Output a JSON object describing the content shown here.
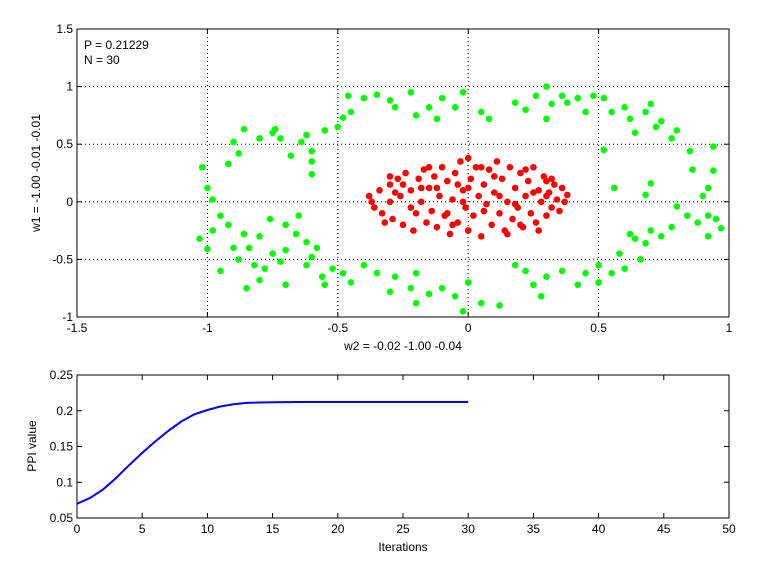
{
  "chart_data": [
    {
      "type": "scatter",
      "title": "",
      "xlabel": "w2 = -0.02  -1.00  -0.04",
      "ylabel": "w1 = -1.00  -0.01  -0.01",
      "xlim": [
        -1.5,
        1
      ],
      "ylim": [
        -1,
        1.5
      ],
      "xticks": [
        "-1.5",
        "-1",
        "-0.5",
        "0",
        "0.5",
        "1"
      ],
      "yticks": [
        "-1",
        "-0.5",
        "0",
        "0.5",
        "1",
        "1.5"
      ],
      "grid": true,
      "annotations": [
        "P = 0.21229",
        "N = 30"
      ],
      "colors": {
        "outer": "#00ff00",
        "inner": "#ff0000"
      },
      "series": [
        {
          "color": "#00ff00",
          "points": [
            [
              -1.02,
              0.3
            ],
            [
              -1.0,
              0.12
            ],
            [
              -0.98,
              0.02
            ],
            [
              -1.03,
              -0.32
            ],
            [
              -1.0,
              -0.41
            ],
            [
              -0.98,
              -0.25
            ],
            [
              -0.95,
              -0.12
            ],
            [
              -0.92,
              0.33
            ],
            [
              -0.9,
              0.52
            ],
            [
              -0.88,
              0.42
            ],
            [
              -0.86,
              0.63
            ],
            [
              -0.8,
              0.55
            ],
            [
              -0.75,
              0.6
            ],
            [
              -0.72,
              0.55
            ],
            [
              -0.74,
              0.63
            ],
            [
              -0.68,
              0.4
            ],
            [
              -0.64,
              0.52
            ],
            [
              -0.6,
              0.44
            ],
            [
              -0.62,
              0.58
            ],
            [
              -0.6,
              0.35
            ],
            [
              -0.6,
              0.24
            ],
            [
              -0.55,
              0.62
            ],
            [
              -0.5,
              0.65
            ],
            [
              -0.48,
              0.73
            ],
            [
              -0.45,
              0.78
            ],
            [
              -0.46,
              0.92
            ],
            [
              -0.4,
              0.9
            ],
            [
              -0.35,
              0.93
            ],
            [
              -0.3,
              0.88
            ],
            [
              -0.28,
              0.82
            ],
            [
              -0.22,
              0.95
            ],
            [
              -0.2,
              0.75
            ],
            [
              -0.15,
              0.82
            ],
            [
              -0.12,
              0.72
            ],
            [
              -0.1,
              0.9
            ],
            [
              -0.05,
              0.82
            ],
            [
              -0.02,
              0.95
            ],
            [
              0.05,
              0.78
            ],
            [
              0.08,
              0.72
            ],
            [
              0.18,
              0.86
            ],
            [
              0.22,
              0.8
            ],
            [
              0.26,
              0.92
            ],
            [
              0.3,
              1.0
            ],
            [
              0.32,
              0.85
            ],
            [
              0.3,
              0.72
            ],
            [
              0.36,
              0.92
            ],
            [
              0.38,
              0.86
            ],
            [
              0.42,
              0.9
            ],
            [
              0.45,
              0.78
            ],
            [
              0.48,
              0.92
            ],
            [
              0.52,
              0.9
            ],
            [
              0.55,
              0.78
            ],
            [
              0.6,
              0.82
            ],
            [
              0.62,
              0.72
            ],
            [
              0.64,
              0.6
            ],
            [
              0.68,
              0.78
            ],
            [
              0.7,
              0.85
            ],
            [
              0.72,
              0.65
            ],
            [
              0.74,
              0.7
            ],
            [
              0.78,
              0.55
            ],
            [
              0.8,
              0.62
            ],
            [
              0.85,
              0.44
            ],
            [
              0.86,
              0.28
            ],
            [
              0.92,
              0.12
            ],
            [
              0.94,
              0.27
            ],
            [
              0.94,
              0.48
            ],
            [
              0.9,
              0.05
            ],
            [
              0.92,
              -0.12
            ],
            [
              0.95,
              -0.15
            ],
            [
              0.97,
              -0.23
            ],
            [
              0.92,
              -0.3
            ],
            [
              0.88,
              -0.18
            ],
            [
              0.84,
              -0.12
            ],
            [
              0.8,
              -0.04
            ],
            [
              0.78,
              -0.22
            ],
            [
              0.74,
              -0.3
            ],
            [
              0.7,
              -0.25
            ],
            [
              0.68,
              -0.36
            ],
            [
              0.64,
              -0.32
            ],
            [
              0.66,
              -0.5
            ],
            [
              0.6,
              -0.58
            ],
            [
              0.58,
              -0.45
            ],
            [
              0.62,
              -0.28
            ],
            [
              0.68,
              0.06
            ],
            [
              0.7,
              0.16
            ],
            [
              0.56,
              0.12
            ],
            [
              0.52,
              0.45
            ],
            [
              0.55,
              -0.62
            ],
            [
              0.5,
              -0.55
            ],
            [
              0.5,
              -0.7
            ],
            [
              0.45,
              -0.62
            ],
            [
              0.42,
              -0.72
            ],
            [
              0.36,
              -0.6
            ],
            [
              0.3,
              -0.65
            ],
            [
              0.28,
              -0.82
            ],
            [
              0.25,
              -0.72
            ],
            [
              0.22,
              -0.6
            ],
            [
              0.18,
              -0.55
            ],
            [
              0.12,
              -0.9
            ],
            [
              0.05,
              -0.88
            ],
            [
              -0.02,
              -0.95
            ],
            [
              -0.05,
              -0.82
            ],
            [
              -0.1,
              -0.75
            ],
            [
              -0.15,
              -0.8
            ],
            [
              -0.2,
              -0.88
            ],
            [
              -0.22,
              -0.75
            ],
            [
              -0.28,
              -0.65
            ],
            [
              -0.3,
              -0.78
            ],
            [
              -0.35,
              -0.62
            ],
            [
              -0.4,
              -0.55
            ],
            [
              -0.45,
              -0.7
            ],
            [
              -0.48,
              -0.62
            ],
            [
              -0.52,
              -0.58
            ],
            [
              -0.55,
              -0.72
            ],
            [
              -0.6,
              -0.48
            ],
            [
              -0.62,
              -0.35
            ],
            [
              -0.66,
              -0.28
            ],
            [
              -0.7,
              -0.42
            ],
            [
              -0.72,
              -0.52
            ],
            [
              -0.75,
              -0.45
            ],
            [
              -0.78,
              -0.58
            ],
            [
              -0.8,
              -0.68
            ],
            [
              -0.82,
              -0.55
            ],
            [
              -0.84,
              -0.4
            ],
            [
              -0.86,
              -0.28
            ],
            [
              -0.88,
              -0.5
            ],
            [
              -0.9,
              -0.4
            ],
            [
              -0.92,
              -0.2
            ],
            [
              -0.8,
              -0.3
            ],
            [
              -0.76,
              -0.15
            ],
            [
              -0.7,
              -0.2
            ],
            [
              -0.65,
              -0.12
            ],
            [
              -0.62,
              -0.55
            ],
            [
              -0.58,
              -0.4
            ],
            [
              -0.56,
              -0.65
            ],
            [
              -0.7,
              -0.72
            ],
            [
              -0.85,
              -0.75
            ],
            [
              -0.95,
              -0.6
            ],
            [
              -0.2,
              -0.62
            ],
            [
              0.0,
              -0.7
            ]
          ]
        },
        {
          "color": "#ff0000",
          "points": [
            [
              -0.38,
              0.05
            ],
            [
              -0.36,
              -0.05
            ],
            [
              -0.34,
              0.1
            ],
            [
              -0.33,
              -0.1
            ],
            [
              -0.3,
              0.15
            ],
            [
              -0.3,
              0.0
            ],
            [
              -0.29,
              -0.15
            ],
            [
              -0.27,
              0.2
            ],
            [
              -0.26,
              0.05
            ],
            [
              -0.25,
              -0.2
            ],
            [
              -0.24,
              0.25
            ],
            [
              -0.22,
              0.1
            ],
            [
              -0.22,
              -0.05
            ],
            [
              -0.21,
              -0.25
            ],
            [
              -0.19,
              0.2
            ],
            [
              -0.18,
              0.0
            ],
            [
              -0.17,
              0.28
            ],
            [
              -0.16,
              -0.18
            ],
            [
              -0.15,
              0.12
            ],
            [
              -0.14,
              -0.08
            ],
            [
              -0.13,
              0.22
            ],
            [
              -0.12,
              -0.22
            ],
            [
              -0.11,
              0.05
            ],
            [
              -0.1,
              0.3
            ],
            [
              -0.09,
              -0.12
            ],
            [
              -0.08,
              0.18
            ],
            [
              -0.07,
              -0.28
            ],
            [
              -0.06,
              0.02
            ],
            [
              -0.05,
              0.25
            ],
            [
              -0.04,
              -0.18
            ],
            [
              -0.03,
              0.35
            ],
            [
              -0.02,
              0.1
            ],
            [
              -0.01,
              -0.05
            ],
            [
              0.0,
              0.38
            ],
            [
              0.0,
              -0.25
            ],
            [
              0.01,
              0.2
            ],
            [
              0.02,
              -0.12
            ],
            [
              0.03,
              0.3
            ],
            [
              0.04,
              0.05
            ],
            [
              0.05,
              -0.3
            ],
            [
              0.06,
              0.15
            ],
            [
              0.07,
              -0.02
            ],
            [
              0.08,
              0.28
            ],
            [
              0.09,
              -0.2
            ],
            [
              0.1,
              0.08
            ],
            [
              0.11,
              0.35
            ],
            [
              0.12,
              -0.1
            ],
            [
              0.13,
              0.2
            ],
            [
              0.14,
              -0.25
            ],
            [
              0.15,
              0.0
            ],
            [
              0.16,
              0.3
            ],
            [
              0.17,
              -0.15
            ],
            [
              0.18,
              0.12
            ],
            [
              0.19,
              -0.05
            ],
            [
              0.2,
              0.25
            ],
            [
              0.21,
              -0.22
            ],
            [
              0.22,
              0.05
            ],
            [
              0.23,
              0.18
            ],
            [
              0.24,
              -0.1
            ],
            [
              0.25,
              0.3
            ],
            [
              0.26,
              -0.18
            ],
            [
              0.27,
              0.1
            ],
            [
              0.28,
              0.0
            ],
            [
              0.29,
              0.22
            ],
            [
              0.3,
              -0.12
            ],
            [
              0.31,
              0.08
            ],
            [
              0.32,
              -0.05
            ],
            [
              0.33,
              0.15
            ],
            [
              0.34,
              0.02
            ],
            [
              0.35,
              -0.08
            ],
            [
              0.36,
              0.12
            ],
            [
              0.37,
              0.0
            ],
            [
              0.38,
              0.06
            ],
            [
              -0.37,
              0.0
            ],
            [
              -0.28,
              0.08
            ],
            [
              -0.2,
              -0.1
            ],
            [
              -0.06,
              -0.2
            ],
            [
              0.1,
              0.22
            ],
            [
              0.2,
              -0.2
            ],
            [
              0.3,
              0.18
            ],
            [
              -0.32,
              -0.18
            ],
            [
              -0.15,
              0.3
            ],
            [
              0.05,
              0.3
            ],
            [
              0.15,
              -0.28
            ],
            [
              0.25,
              0.08
            ],
            [
              -0.02,
              0.0
            ],
            [
              -0.25,
              0.15
            ],
            [
              0.0,
              0.12
            ],
            [
              0.12,
              0.05
            ],
            [
              -0.12,
              0.12
            ],
            [
              0.22,
              0.28
            ],
            [
              -0.08,
              -0.1
            ],
            [
              0.3,
              0.05
            ],
            [
              0.32,
              0.2
            ],
            [
              -0.3,
              0.22
            ],
            [
              -0.18,
              0.12
            ],
            [
              0.06,
              -0.08
            ],
            [
              0.18,
              -0.02
            ],
            [
              -0.04,
              0.15
            ],
            [
              0.27,
              -0.25
            ]
          ]
        }
      ]
    },
    {
      "type": "line",
      "title": "",
      "xlabel": "Iterations",
      "ylabel": "PPI value",
      "xlim": [
        0,
        50
      ],
      "ylim": [
        0.05,
        0.25
      ],
      "xticks": [
        "0",
        "5",
        "10",
        "15",
        "20",
        "25",
        "30",
        "35",
        "40",
        "45",
        "50"
      ],
      "yticks": [
        "0.05",
        "0.1",
        "0.15",
        "0.2",
        "0.25"
      ],
      "grid": false,
      "series": [
        {
          "color": "#0000ff",
          "x": [
            0,
            1,
            2,
            3,
            4,
            5,
            6,
            7,
            8,
            9,
            10,
            11,
            12,
            13,
            14,
            15,
            16,
            17,
            18,
            19,
            20,
            21,
            22,
            23,
            24,
            25,
            26,
            27,
            28,
            29,
            30
          ],
          "y": [
            0.07,
            0.078,
            0.09,
            0.106,
            0.124,
            0.141,
            0.157,
            0.172,
            0.185,
            0.195,
            0.201,
            0.206,
            0.209,
            0.211,
            0.2115,
            0.212,
            0.2121,
            0.2122,
            0.2122,
            0.2123,
            0.2123,
            0.2123,
            0.2123,
            0.2123,
            0.2123,
            0.2123,
            0.2123,
            0.2123,
            0.2123,
            0.2123,
            0.2123
          ]
        }
      ]
    }
  ]
}
